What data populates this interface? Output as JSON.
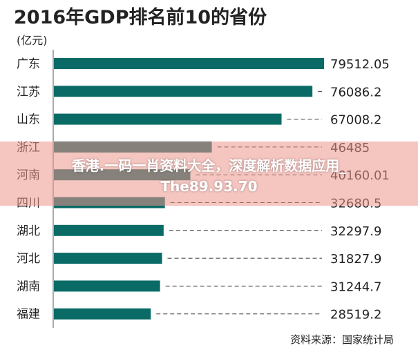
{
  "colors": {
    "bar": "#0a6b66",
    "text": "#222222",
    "leader": "#333333",
    "overlay_bg": "#ec968c",
    "overlay_text": "#ffffff"
  },
  "chart_data": {
    "type": "bar",
    "orientation": "horizontal",
    "title": "2016年GDP排名前10的省份",
    "unit_label": "(亿元)",
    "categories": [
      "广东",
      "江苏",
      "山东",
      "浙江",
      "河南",
      "四川",
      "湖北",
      "河北",
      "湖南",
      "福建"
    ],
    "values": [
      79512.05,
      76086.2,
      67008.2,
      46485,
      40160.01,
      32680.5,
      32297.9,
      31827.9,
      31244.7,
      28519.2
    ],
    "value_labels": [
      "79512.05",
      "76086.2",
      "67008.2",
      "46485",
      "40160.01",
      "32680.5",
      "32297.9",
      "31827.9",
      "31244.7",
      "28519.2"
    ],
    "xlim": [
      0,
      79512.05
    ],
    "grid": false,
    "source": "资料来源：国家统计局"
  },
  "watermark": {
    "line1": "香港.一码一肖资料大全，深度解析数据应用_",
    "line2": "The89.93.70"
  }
}
